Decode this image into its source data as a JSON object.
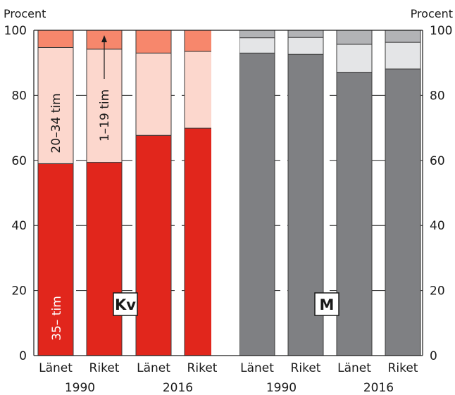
{
  "chart_data": {
    "type": "bar",
    "stacked": true,
    "ylabel_left": "Procent",
    "ylabel_right": "Procent",
    "ylim": [
      0,
      100
    ],
    "yticks": [
      0,
      20,
      40,
      60,
      80,
      100
    ],
    "grid": true,
    "panels": [
      {
        "badge": "Kv",
        "bars": [
          {
            "category": "Länet",
            "year": "1990",
            "segments": [
              59,
              35.7,
              5.3
            ]
          },
          {
            "category": "Riket",
            "year": "1990",
            "segments": [
              59.4,
              34.8,
              5.8
            ]
          },
          {
            "category": "Länet",
            "year": "2016",
            "segments": [
              67.7,
              25.3,
              7.0
            ]
          },
          {
            "category": "Riket",
            "year": "2016",
            "segments": [
              69.9,
              23.6,
              6.5
            ]
          }
        ],
        "colors": [
          "#e1261c",
          "#fcd7cd",
          "#f7876c"
        ]
      },
      {
        "badge": "M",
        "bars": [
          {
            "category": "Länet",
            "year": "1990",
            "segments": [
              93,
              4.7,
              2.3
            ]
          },
          {
            "category": "Riket",
            "year": "1990",
            "segments": [
              92.6,
              5.2,
              2.2
            ]
          },
          {
            "category": "Länet",
            "year": "2016",
            "segments": [
              87.1,
              8.6,
              4.3
            ]
          },
          {
            "category": "Riket",
            "year": "2016",
            "segments": [
              88.1,
              8.2,
              3.7
            ]
          }
        ],
        "colors": [
          "#7f8083",
          "#e4e5e7",
          "#b2b3b6"
        ]
      }
    ],
    "year_labels": [
      "1990",
      "2016",
      "1990",
      "2016"
    ],
    "segment_labels": [
      "35– tim",
      "20–34 tim",
      "1–19 tim"
    ]
  }
}
